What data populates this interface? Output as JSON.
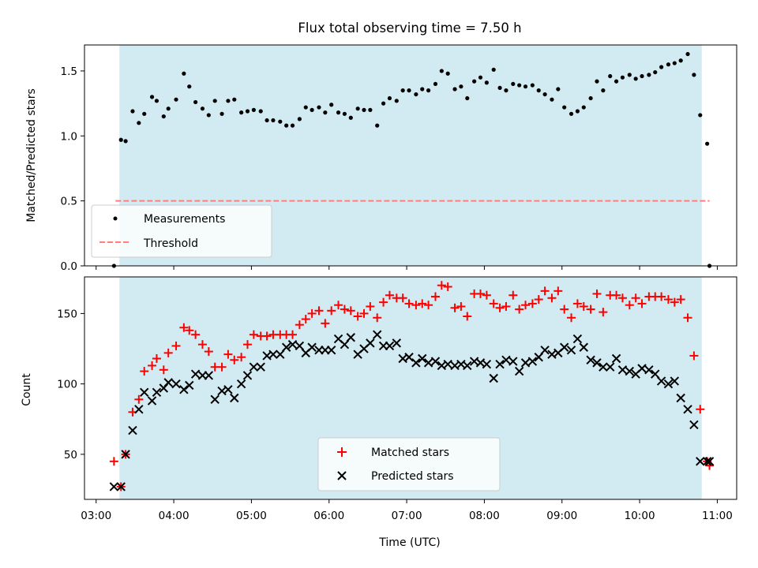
{
  "chart_data": [
    {
      "type": "scatter",
      "title": "Flux total observing time = 7.50 h",
      "ylabel": "Matched/Predicted stars",
      "xlabel": "",
      "xlim": [
        2.85,
        11.25
      ],
      "ylim": [
        0,
        1.7
      ],
      "xticks": [
        3,
        4,
        5,
        6,
        7,
        8,
        9,
        10,
        11
      ],
      "yticks": [
        0.0,
        0.5,
        1.0,
        1.5
      ],
      "ytick_labels": [
        "0.0",
        "0.5",
        "1.0",
        "1.5"
      ],
      "observing_window": [
        3.3,
        10.8
      ],
      "threshold": {
        "value": 0.5,
        "x_range": [
          3.25,
          10.9
        ],
        "color": "#ff7f7f"
      },
      "legend_position": "lower-left",
      "legend": [
        "Measurements",
        "Threshold"
      ],
      "series": [
        {
          "name": "Measurements",
          "color": "#000000",
          "x": [
            3.23,
            3.32,
            3.38,
            3.47,
            3.55,
            3.62,
            3.72,
            3.78,
            3.87,
            3.93,
            4.03,
            4.13,
            4.2,
            4.28,
            4.37,
            4.45,
            4.53,
            4.62,
            4.7,
            4.78,
            4.87,
            4.95,
            5.03,
            5.12,
            5.2,
            5.28,
            5.37,
            5.45,
            5.53,
            5.62,
            5.7,
            5.78,
            5.87,
            5.95,
            6.03,
            6.12,
            6.2,
            6.28,
            6.37,
            6.45,
            6.53,
            6.62,
            6.7,
            6.78,
            6.87,
            6.95,
            7.03,
            7.12,
            7.2,
            7.28,
            7.37,
            7.45,
            7.53,
            7.62,
            7.7,
            7.78,
            7.87,
            7.95,
            8.03,
            8.12,
            8.2,
            8.28,
            8.37,
            8.45,
            8.53,
            8.62,
            8.7,
            8.78,
            8.87,
            8.95,
            9.03,
            9.12,
            9.2,
            9.28,
            9.37,
            9.45,
            9.53,
            9.62,
            9.7,
            9.78,
            9.87,
            9.95,
            10.03,
            10.12,
            10.2,
            10.28,
            10.37,
            10.45,
            10.53,
            10.62,
            10.7,
            10.78,
            10.87,
            10.9
          ],
          "y": [
            0.0,
            0.97,
            0.96,
            1.19,
            1.1,
            1.17,
            1.3,
            1.27,
            1.15,
            1.21,
            1.28,
            1.48,
            1.38,
            1.26,
            1.21,
            1.16,
            1.27,
            1.17,
            1.27,
            1.28,
            1.18,
            1.19,
            1.2,
            1.19,
            1.12,
            1.12,
            1.11,
            1.08,
            1.08,
            1.13,
            1.22,
            1.2,
            1.22,
            1.18,
            1.24,
            1.18,
            1.17,
            1.14,
            1.21,
            1.2,
            1.2,
            1.08,
            1.25,
            1.29,
            1.27,
            1.35,
            1.35,
            1.32,
            1.36,
            1.35,
            1.4,
            1.5,
            1.48,
            1.36,
            1.38,
            1.29,
            1.42,
            1.45,
            1.41,
            1.51,
            1.37,
            1.35,
            1.4,
            1.39,
            1.38,
            1.39,
            1.35,
            1.32,
            1.28,
            1.36,
            1.22,
            1.17,
            1.19,
            1.22,
            1.29,
            1.42,
            1.35,
            1.46,
            1.42,
            1.45,
            1.47,
            1.44,
            1.46,
            1.47,
            1.49,
            1.53,
            1.55,
            1.56,
            1.58,
            1.63,
            1.47,
            1.16,
            0.94,
            0.0
          ]
        }
      ]
    },
    {
      "type": "scatter",
      "title": "",
      "ylabel": "Count",
      "xlabel": "Time (UTC)",
      "xlim": [
        2.85,
        11.25
      ],
      "ylim": [
        18,
        176
      ],
      "xticks": [
        3,
        4,
        5,
        6,
        7,
        8,
        9,
        10,
        11
      ],
      "xtick_labels": [
        "03:00",
        "04:00",
        "05:00",
        "06:00",
        "07:00",
        "08:00",
        "09:00",
        "10:00",
        "11:00"
      ],
      "yticks": [
        50,
        100,
        150
      ],
      "ytick_labels": [
        "50",
        "100",
        "150"
      ],
      "observing_window": [
        3.3,
        10.8
      ],
      "legend_position": "lower-center",
      "legend": [
        "Matched stars",
        "Predicted stars"
      ],
      "series": [
        {
          "name": "Matched stars",
          "color": "#ff0000",
          "marker": "+",
          "x": [
            3.23,
            3.32,
            3.38,
            3.47,
            3.55,
            3.62,
            3.72,
            3.78,
            3.87,
            3.93,
            4.03,
            4.13,
            4.2,
            4.28,
            4.37,
            4.45,
            4.53,
            4.62,
            4.7,
            4.78,
            4.87,
            4.95,
            5.03,
            5.12,
            5.2,
            5.28,
            5.37,
            5.45,
            5.53,
            5.62,
            5.7,
            5.78,
            5.87,
            5.95,
            6.03,
            6.12,
            6.2,
            6.28,
            6.37,
            6.45,
            6.53,
            6.62,
            6.7,
            6.78,
            6.87,
            6.95,
            7.03,
            7.12,
            7.2,
            7.28,
            7.37,
            7.45,
            7.53,
            7.62,
            7.7,
            7.78,
            7.87,
            7.95,
            8.03,
            8.12,
            8.2,
            8.28,
            8.37,
            8.45,
            8.53,
            8.62,
            8.7,
            8.78,
            8.87,
            8.95,
            9.03,
            9.12,
            9.2,
            9.28,
            9.37,
            9.45,
            9.53,
            9.62,
            9.7,
            9.78,
            9.87,
            9.95,
            10.03,
            10.12,
            10.2,
            10.28,
            10.37,
            10.45,
            10.53,
            10.62,
            10.7,
            10.78,
            10.87,
            10.9
          ],
          "y": [
            45,
            27,
            50,
            80,
            89,
            109,
            113,
            118,
            110,
            122,
            127,
            140,
            138,
            135,
            128,
            123,
            112,
            112,
            121,
            117,
            119,
            128,
            135,
            134,
            134,
            135,
            135,
            135,
            135,
            142,
            146,
            150,
            152,
            143,
            152,
            156,
            153,
            152,
            148,
            150,
            155,
            147,
            158,
            163,
            161,
            161,
            157,
            156,
            157,
            156,
            162,
            170,
            169,
            154,
            155,
            148,
            164,
            164,
            163,
            157,
            154,
            155,
            163,
            153,
            156,
            157,
            160,
            166,
            161,
            166,
            153,
            147,
            157,
            155,
            153,
            164,
            151,
            163,
            163,
            161,
            156,
            161,
            157,
            162,
            162,
            162,
            160,
            158,
            160,
            147,
            120,
            82,
            45,
            42
          ]
        },
        {
          "name": "Predicted stars",
          "color": "#000000",
          "marker": "x",
          "x": [
            3.23,
            3.32,
            3.38,
            3.47,
            3.55,
            3.62,
            3.72,
            3.78,
            3.87,
            3.93,
            4.03,
            4.13,
            4.2,
            4.28,
            4.37,
            4.45,
            4.53,
            4.62,
            4.7,
            4.78,
            4.87,
            4.95,
            5.03,
            5.12,
            5.2,
            5.28,
            5.37,
            5.45,
            5.53,
            5.62,
            5.7,
            5.78,
            5.87,
            5.95,
            6.03,
            6.12,
            6.2,
            6.28,
            6.37,
            6.45,
            6.53,
            6.62,
            6.7,
            6.78,
            6.87,
            6.95,
            7.03,
            7.12,
            7.2,
            7.28,
            7.37,
            7.45,
            7.53,
            7.62,
            7.7,
            7.78,
            7.87,
            7.95,
            8.03,
            8.12,
            8.2,
            8.28,
            8.37,
            8.45,
            8.53,
            8.62,
            8.7,
            8.78,
            8.87,
            8.95,
            9.03,
            9.12,
            9.2,
            9.28,
            9.37,
            9.45,
            9.53,
            9.62,
            9.7,
            9.78,
            9.87,
            9.95,
            10.03,
            10.12,
            10.2,
            10.28,
            10.37,
            10.45,
            10.53,
            10.62,
            10.7,
            10.78,
            10.87,
            10.9
          ],
          "y": [
            27,
            27,
            50,
            67,
            82,
            94,
            88,
            94,
            97,
            101,
            100,
            96,
            99,
            107,
            106,
            106,
            89,
            95,
            96,
            90,
            100,
            106,
            112,
            112,
            120,
            121,
            121,
            126,
            128,
            127,
            122,
            126,
            124,
            124,
            124,
            132,
            128,
            133,
            121,
            125,
            129,
            135,
            127,
            127,
            129,
            118,
            119,
            115,
            118,
            115,
            116,
            113,
            114,
            113,
            114,
            113,
            116,
            115,
            114,
            104,
            114,
            117,
            116,
            109,
            115,
            116,
            119,
            124,
            121,
            122,
            126,
            124,
            132,
            126,
            117,
            115,
            112,
            112,
            118,
            110,
            109,
            107,
            111,
            110,
            107,
            102,
            100,
            102,
            90,
            82,
            71,
            45,
            45,
            45
          ]
        }
      ]
    }
  ]
}
